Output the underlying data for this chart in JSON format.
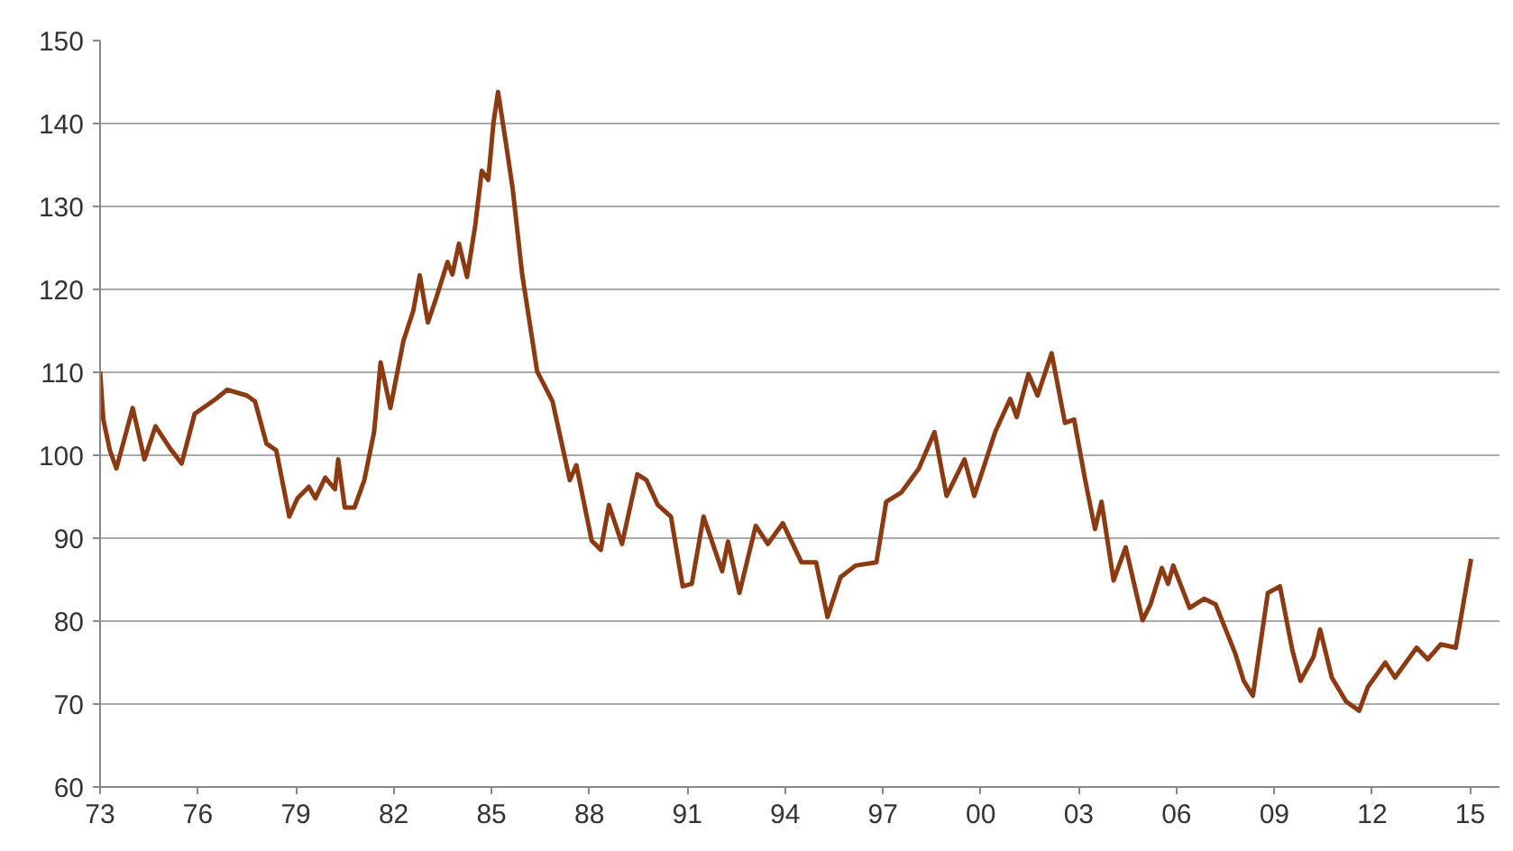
{
  "chart_data": {
    "type": "line",
    "xlim": [
      1973,
      2015.9
    ],
    "ylim": [
      60,
      150
    ],
    "xticks": [
      {
        "value": 1973,
        "label": "73"
      },
      {
        "value": 1976,
        "label": "76"
      },
      {
        "value": 1979,
        "label": "79"
      },
      {
        "value": 1982,
        "label": "82"
      },
      {
        "value": 1985,
        "label": "85"
      },
      {
        "value": 1988,
        "label": "88"
      },
      {
        "value": 1991,
        "label": "91"
      },
      {
        "value": 1994,
        "label": "94"
      },
      {
        "value": 1997,
        "label": "97"
      },
      {
        "value": 2000,
        "label": "00"
      },
      {
        "value": 2003,
        "label": "03"
      },
      {
        "value": 2006,
        "label": "06"
      },
      {
        "value": 2009,
        "label": "09"
      },
      {
        "value": 2012,
        "label": "12"
      },
      {
        "value": 2015,
        "label": "15"
      }
    ],
    "yticks": [
      60,
      70,
      80,
      90,
      100,
      110,
      120,
      130,
      140,
      150
    ],
    "grid": "y",
    "marker": "none",
    "line_style": "solid",
    "series": [
      {
        "color": "#8b3a12",
        "x": [
          1973.0,
          1973.1,
          1973.3,
          1973.5,
          1974.0,
          1974.36,
          1974.7,
          1975.15,
          1975.5,
          1975.9,
          1976.55,
          1976.9,
          1977.5,
          1977.75,
          1978.1,
          1978.4,
          1978.8,
          1979.05,
          1979.4,
          1979.6,
          1979.9,
          1980.2,
          1980.3,
          1980.5,
          1980.8,
          1981.1,
          1981.4,
          1981.6,
          1981.9,
          1982.3,
          1982.6,
          1982.8,
          1983.05,
          1983.3,
          1983.65,
          1983.8,
          1984.0,
          1984.25,
          1984.5,
          1984.7,
          1984.9,
          1985.06,
          1985.2,
          1985.4,
          1985.65,
          1985.94,
          1986.4,
          1986.87,
          1987.4,
          1987.6,
          1988.07,
          1988.35,
          1988.6,
          1989.0,
          1989.47,
          1989.75,
          1990.1,
          1990.5,
          1990.86,
          1991.14,
          1991.5,
          1992.07,
          1992.25,
          1992.6,
          1993.1,
          1993.47,
          1993.93,
          1994.5,
          1994.95,
          1995.3,
          1995.7,
          1996.16,
          1996.8,
          1997.1,
          1997.56,
          1998.1,
          1998.58,
          1998.95,
          1999.5,
          1999.8,
          2000.44,
          2000.9,
          2001.1,
          2001.46,
          2001.74,
          2002.17,
          2002.58,
          2002.86,
          2003.2,
          2003.5,
          2003.7,
          2004.07,
          2004.44,
          2004.96,
          2005.2,
          2005.55,
          2005.74,
          2005.9,
          2006.4,
          2006.85,
          2007.2,
          2007.8,
          2008.06,
          2008.34,
          2008.8,
          2009.17,
          2009.55,
          2009.8,
          2010.2,
          2010.4,
          2010.76,
          2011.2,
          2011.6,
          2011.87,
          2012.4,
          2012.7,
          2013.36,
          2013.7,
          2014.1,
          2014.56,
          2015.03
        ],
        "values": [
          110.1,
          104.3,
          100.6,
          98.4,
          105.7,
          99.5,
          103.5,
          100.8,
          99,
          105,
          106.8,
          107.9,
          107.2,
          106.5,
          101.4,
          100.6,
          92.6,
          94.8,
          96.2,
          94.8,
          97.3,
          95.9,
          99.5,
          93.7,
          93.7,
          97.0,
          102.8,
          111.2,
          105.7,
          113.8,
          117.4,
          121.7,
          116,
          118.9,
          123.3,
          121.8,
          125.5,
          121.5,
          127.7,
          134.3,
          133.2,
          140.1,
          143.8,
          138.7,
          132.1,
          121.8,
          110.1,
          106.5,
          97,
          98.8,
          89.7,
          88.6,
          94,
          89.3,
          97.7,
          97,
          94,
          92.6,
          84.2,
          84.5,
          92.6,
          86,
          89.6,
          83.4,
          91.5,
          89.3,
          91.8,
          87.1,
          87.1,
          80.5,
          85.3,
          86.7,
          87.1,
          94.4,
          95.5,
          98.4,
          102.8,
          95.1,
          99.5,
          95.1,
          102.8,
          106.8,
          104.6,
          109.8,
          107.2,
          112.3,
          103.9,
          104.3,
          97,
          91.1,
          94.4,
          84.9,
          88.9,
          80.1,
          82,
          86.4,
          84.5,
          86.7,
          81.6,
          82.7,
          82,
          76.1,
          72.8,
          71,
          83.4,
          84.2,
          76.5,
          72.8,
          75.7,
          79,
          73.2,
          70.3,
          69.2,
          72.1,
          75,
          73.2,
          76.8,
          75.4,
          77.2,
          76.8,
          87.5
        ]
      }
    ]
  }
}
